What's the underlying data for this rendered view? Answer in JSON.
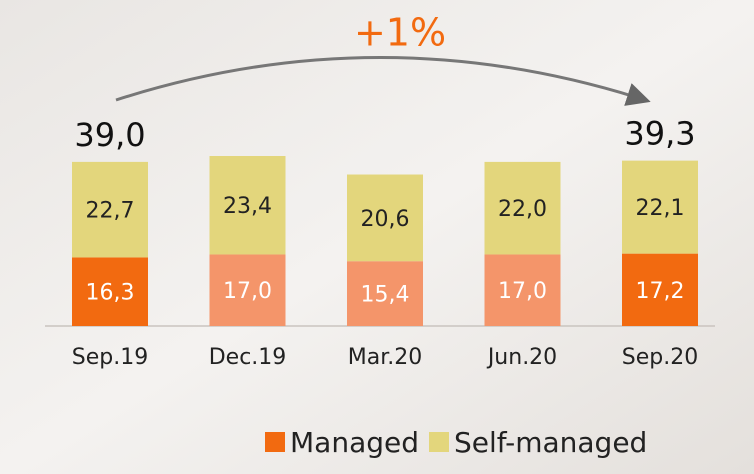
{
  "chart_data": {
    "type": "bar",
    "stacked": true,
    "annotation": "+1%",
    "categories": [
      "Sep.19",
      "Dec.19",
      "Mar.20",
      "Jun.20",
      "Sep.20"
    ],
    "series": [
      {
        "name": "Managed",
        "color": "#f26a10",
        "colors": [
          "#f26a10",
          "#f4956a",
          "#f4956a",
          "#f4956a",
          "#f26a10"
        ],
        "values": [
          16.3,
          17.0,
          15.4,
          17.0,
          17.2
        ],
        "value_labels": [
          "16,3",
          "17,0",
          "15,4",
          "17,0",
          "17,2"
        ]
      },
      {
        "name": "Self-managed",
        "color": "#e3d67c",
        "values": [
          22.7,
          23.4,
          20.6,
          22.0,
          22.1
        ],
        "value_labels": [
          "22,7",
          "23,4",
          "20,6",
          "22,0",
          "22,1"
        ]
      }
    ],
    "totals": {
      "values": [
        39.0,
        null,
        null,
        null,
        39.3
      ],
      "value_labels": [
        "39,0",
        null,
        null,
        null,
        "39,3"
      ]
    }
  }
}
